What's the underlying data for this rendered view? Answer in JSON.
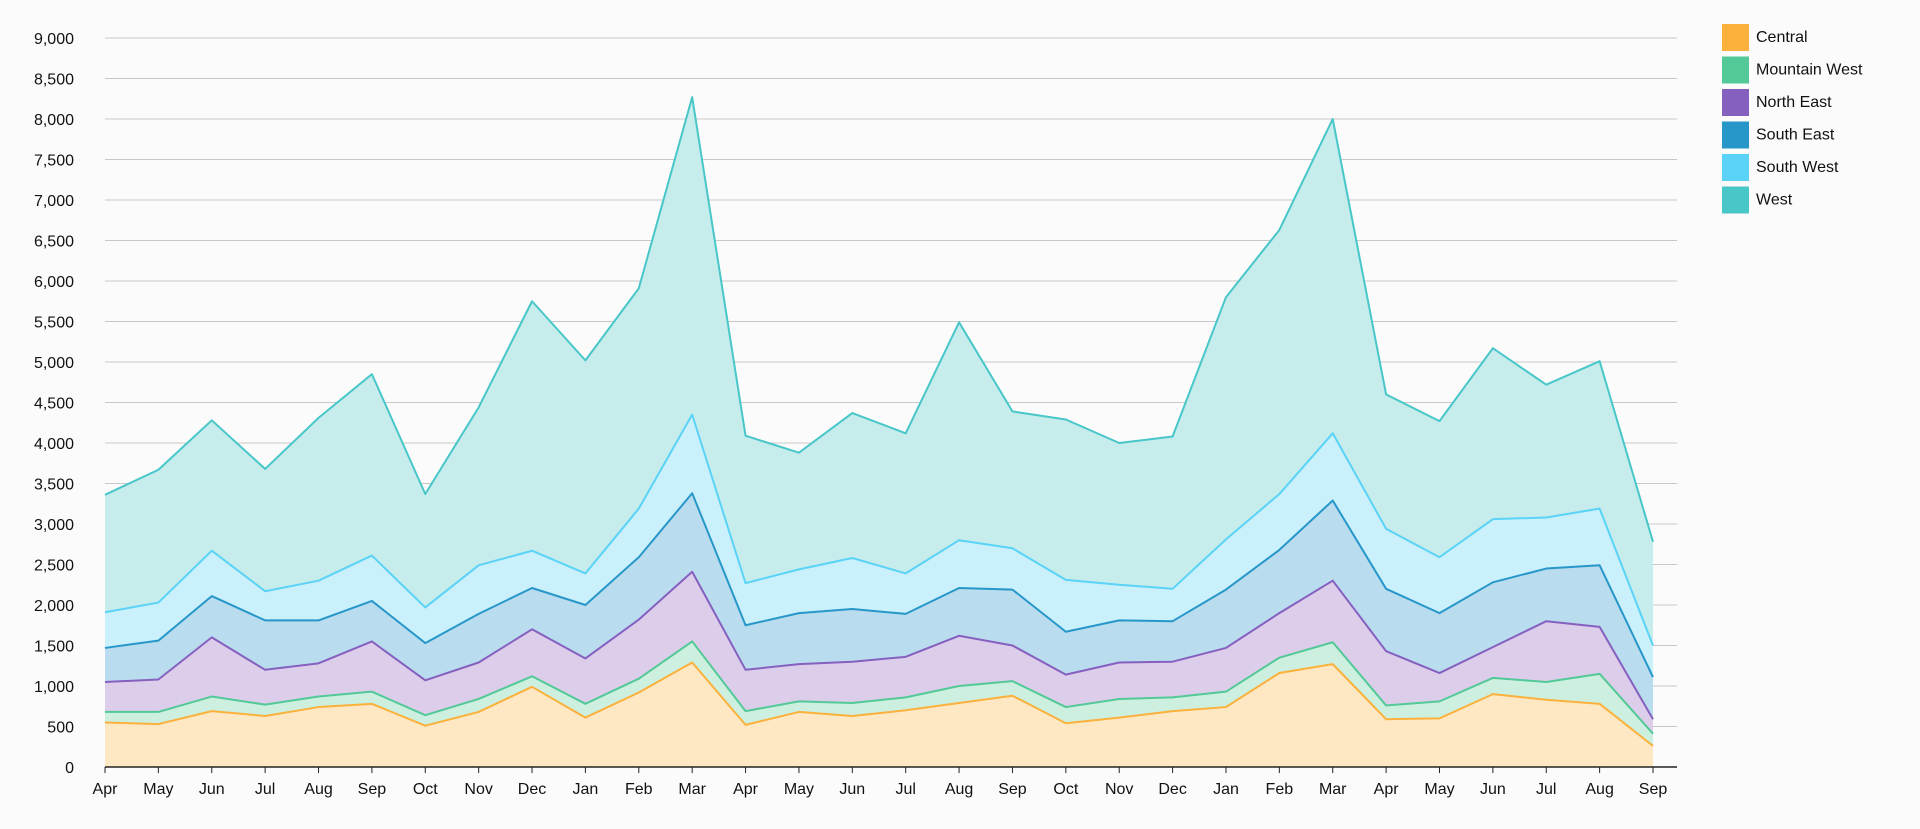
{
  "chart_data": {
    "type": "area",
    "stacked": true,
    "title": "",
    "xlabel": "",
    "ylabel": "",
    "ylim": [
      0,
      9000
    ],
    "yticks": [
      0,
      500,
      1000,
      1500,
      2000,
      2500,
      3000,
      3500,
      4000,
      4500,
      5000,
      5500,
      6000,
      6500,
      7000,
      7500,
      8000,
      8500,
      9000
    ],
    "grid": true,
    "legend_position": "right-top",
    "categories": [
      "Apr",
      "May",
      "Jun",
      "Jul",
      "Aug",
      "Sep",
      "Oct",
      "Nov",
      "Dec",
      "Jan",
      "Feb",
      "Mar",
      "Apr",
      "May",
      "Jun",
      "Jul",
      "Aug",
      "Sep",
      "Oct",
      "Nov",
      "Dec",
      "Jan",
      "Feb",
      "Mar",
      "Apr",
      "May",
      "Jun",
      "Jul",
      "Aug",
      "Sep"
    ],
    "series": [
      {
        "name": "Central",
        "color": "#FBB13C",
        "fill": "#FEE8C3",
        "values": [
          550,
          530,
          690,
          630,
          740,
          780,
          510,
          680,
          990,
          610,
          920,
          1290,
          520,
          680,
          630,
          700,
          790,
          880,
          540,
          610,
          690,
          740,
          1160,
          1270,
          590,
          600,
          900,
          830,
          780,
          260
        ]
      },
      {
        "name": "Mountain West",
        "color": "#52C996",
        "fill": "#CDEFE0",
        "values": [
          130,
          150,
          180,
          140,
          130,
          150,
          130,
          160,
          130,
          170,
          170,
          260,
          170,
          130,
          160,
          160,
          210,
          180,
          200,
          230,
          170,
          190,
          190,
          270,
          170,
          210,
          200,
          220,
          370,
          150
        ]
      },
      {
        "name": "North East",
        "color": "#8660BF",
        "fill": "#DCCDEB",
        "values": [
          370,
          400,
          730,
          430,
          410,
          620,
          430,
          450,
          580,
          560,
          730,
          860,
          510,
          460,
          510,
          500,
          620,
          440,
          400,
          450,
          440,
          540,
          550,
          760,
          670,
          350,
          380,
          750,
          580,
          180
        ]
      },
      {
        "name": "South East",
        "color": "#2797C9",
        "fill": "#B9DCEE",
        "values": [
          420,
          480,
          510,
          610,
          530,
          500,
          460,
          600,
          510,
          660,
          770,
          970,
          550,
          630,
          650,
          530,
          590,
          690,
          530,
          520,
          500,
          720,
          780,
          990,
          770,
          740,
          800,
          650,
          760,
          520
        ]
      },
      {
        "name": "South West",
        "color": "#5AD3F6",
        "fill": "#C9F0FB",
        "values": [
          440,
          470,
          560,
          360,
          490,
          560,
          440,
          600,
          460,
          390,
          600,
          970,
          520,
          540,
          630,
          500,
          590,
          510,
          640,
          440,
          400,
          620,
          690,
          830,
          740,
          690,
          780,
          630,
          700,
          390
        ]
      },
      {
        "name": "West",
        "color": "#48C6C8",
        "fill": "#C6ECEC",
        "values": [
          1450,
          1640,
          1610,
          1510,
          2010,
          2240,
          1400,
          1950,
          3080,
          2630,
          2720,
          3920,
          1820,
          1440,
          1790,
          1730,
          2690,
          1690,
          1980,
          1750,
          1880,
          2990,
          3260,
          3880,
          1660,
          1680,
          2110,
          1640,
          1820,
          1280
        ]
      }
    ]
  }
}
